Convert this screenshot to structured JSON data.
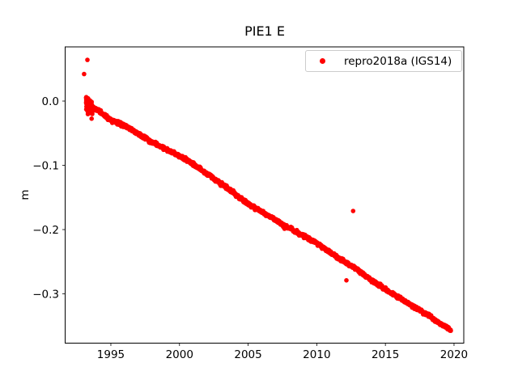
{
  "figure": {
    "background": "#ffffff"
  },
  "chart_data": {
    "type": "scatter",
    "title": "PIE1 E",
    "xlabel": "",
    "ylabel": "m",
    "xlim": [
      1991.67,
      2020.71
    ],
    "ylim": [
      -0.3767,
      0.0843
    ],
    "grid": false,
    "xticks": [
      1995,
      2000,
      2005,
      2010,
      2015,
      2020
    ],
    "xticklabels": [
      "1995",
      "2000",
      "2005",
      "2010",
      "2015",
      "2020"
    ],
    "yticks": [
      0.0,
      -0.1,
      -0.2,
      -0.3
    ],
    "yticklabels": [
      "0.0",
      "−0.1",
      "−0.2",
      "−0.3"
    ],
    "legend": {
      "location": "upper right",
      "entries": [
        {
          "label": "repro2018a (IGS14)",
          "marker": "circle",
          "color": "#ff0000"
        }
      ]
    },
    "series": [
      {
        "name": "repro2018a (IGS14)",
        "color": "#ff0000",
        "marker": "circle",
        "t_start": 1993.2,
        "t_end": 2019.78,
        "samples_per_year": 60,
        "noise_std": 0.0013,
        "start_noise": {
          "until": 1993.65,
          "std": 0.0055,
          "extra_count": 180,
          "extra_span": 0.45
        },
        "trend": [
          [
            1993.2,
            -0.004
          ],
          [
            1993.7,
            -0.01
          ],
          [
            1994.0,
            -0.014
          ],
          [
            1994.5,
            -0.021
          ],
          [
            1995.0,
            -0.029
          ],
          [
            1995.5,
            -0.0335
          ],
          [
            1996.0,
            -0.038
          ],
          [
            1996.5,
            -0.0445
          ],
          [
            1997.0,
            -0.051
          ],
          [
            1997.5,
            -0.0575
          ],
          [
            1998.0,
            -0.064
          ],
          [
            1998.5,
            -0.0695
          ],
          [
            1999.0,
            -0.0745
          ],
          [
            1999.5,
            -0.08
          ],
          [
            2000.0,
            -0.085
          ],
          [
            2000.5,
            -0.0915
          ],
          [
            2001.0,
            -0.098
          ],
          [
            2001.5,
            -0.1055
          ],
          [
            2002.0,
            -0.113
          ],
          [
            2002.5,
            -0.1205
          ],
          [
            2003.0,
            -0.128
          ],
          [
            2003.5,
            -0.136
          ],
          [
            2004.0,
            -0.144
          ],
          [
            2004.5,
            -0.152
          ],
          [
            2005.0,
            -0.16
          ],
          [
            2005.5,
            -0.166
          ],
          [
            2006.0,
            -0.172
          ],
          [
            2006.5,
            -0.179
          ],
          [
            2007.0,
            -0.1855
          ],
          [
            2007.5,
            -0.1915
          ],
          [
            2008.0,
            -0.1975
          ],
          [
            2008.5,
            -0.2035
          ],
          [
            2009.0,
            -0.209
          ],
          [
            2009.5,
            -0.215
          ],
          [
            2010.0,
            -0.221
          ],
          [
            2010.5,
            -0.2285
          ],
          [
            2011.0,
            -0.236
          ],
          [
            2011.5,
            -0.243
          ],
          [
            2012.0,
            -0.25
          ],
          [
            2012.5,
            -0.2565
          ],
          [
            2013.0,
            -0.263
          ],
          [
            2013.5,
            -0.271
          ],
          [
            2014.0,
            -0.279
          ],
          [
            2014.5,
            -0.286
          ],
          [
            2015.0,
            -0.293
          ],
          [
            2015.5,
            -0.2995
          ],
          [
            2016.0,
            -0.306
          ],
          [
            2016.5,
            -0.3125
          ],
          [
            2017.0,
            -0.319
          ],
          [
            2017.5,
            -0.3255
          ],
          [
            2018.0,
            -0.332
          ],
          [
            2018.5,
            -0.339
          ],
          [
            2019.0,
            -0.346
          ],
          [
            2019.4,
            -0.3515
          ],
          [
            2019.78,
            -0.357
          ]
        ],
        "outliers": [
          [
            1993.29,
            0.064
          ],
          [
            1993.05,
            0.042
          ],
          [
            2012.65,
            -0.171
          ],
          [
            2012.16,
            -0.279
          ]
        ]
      }
    ]
  }
}
